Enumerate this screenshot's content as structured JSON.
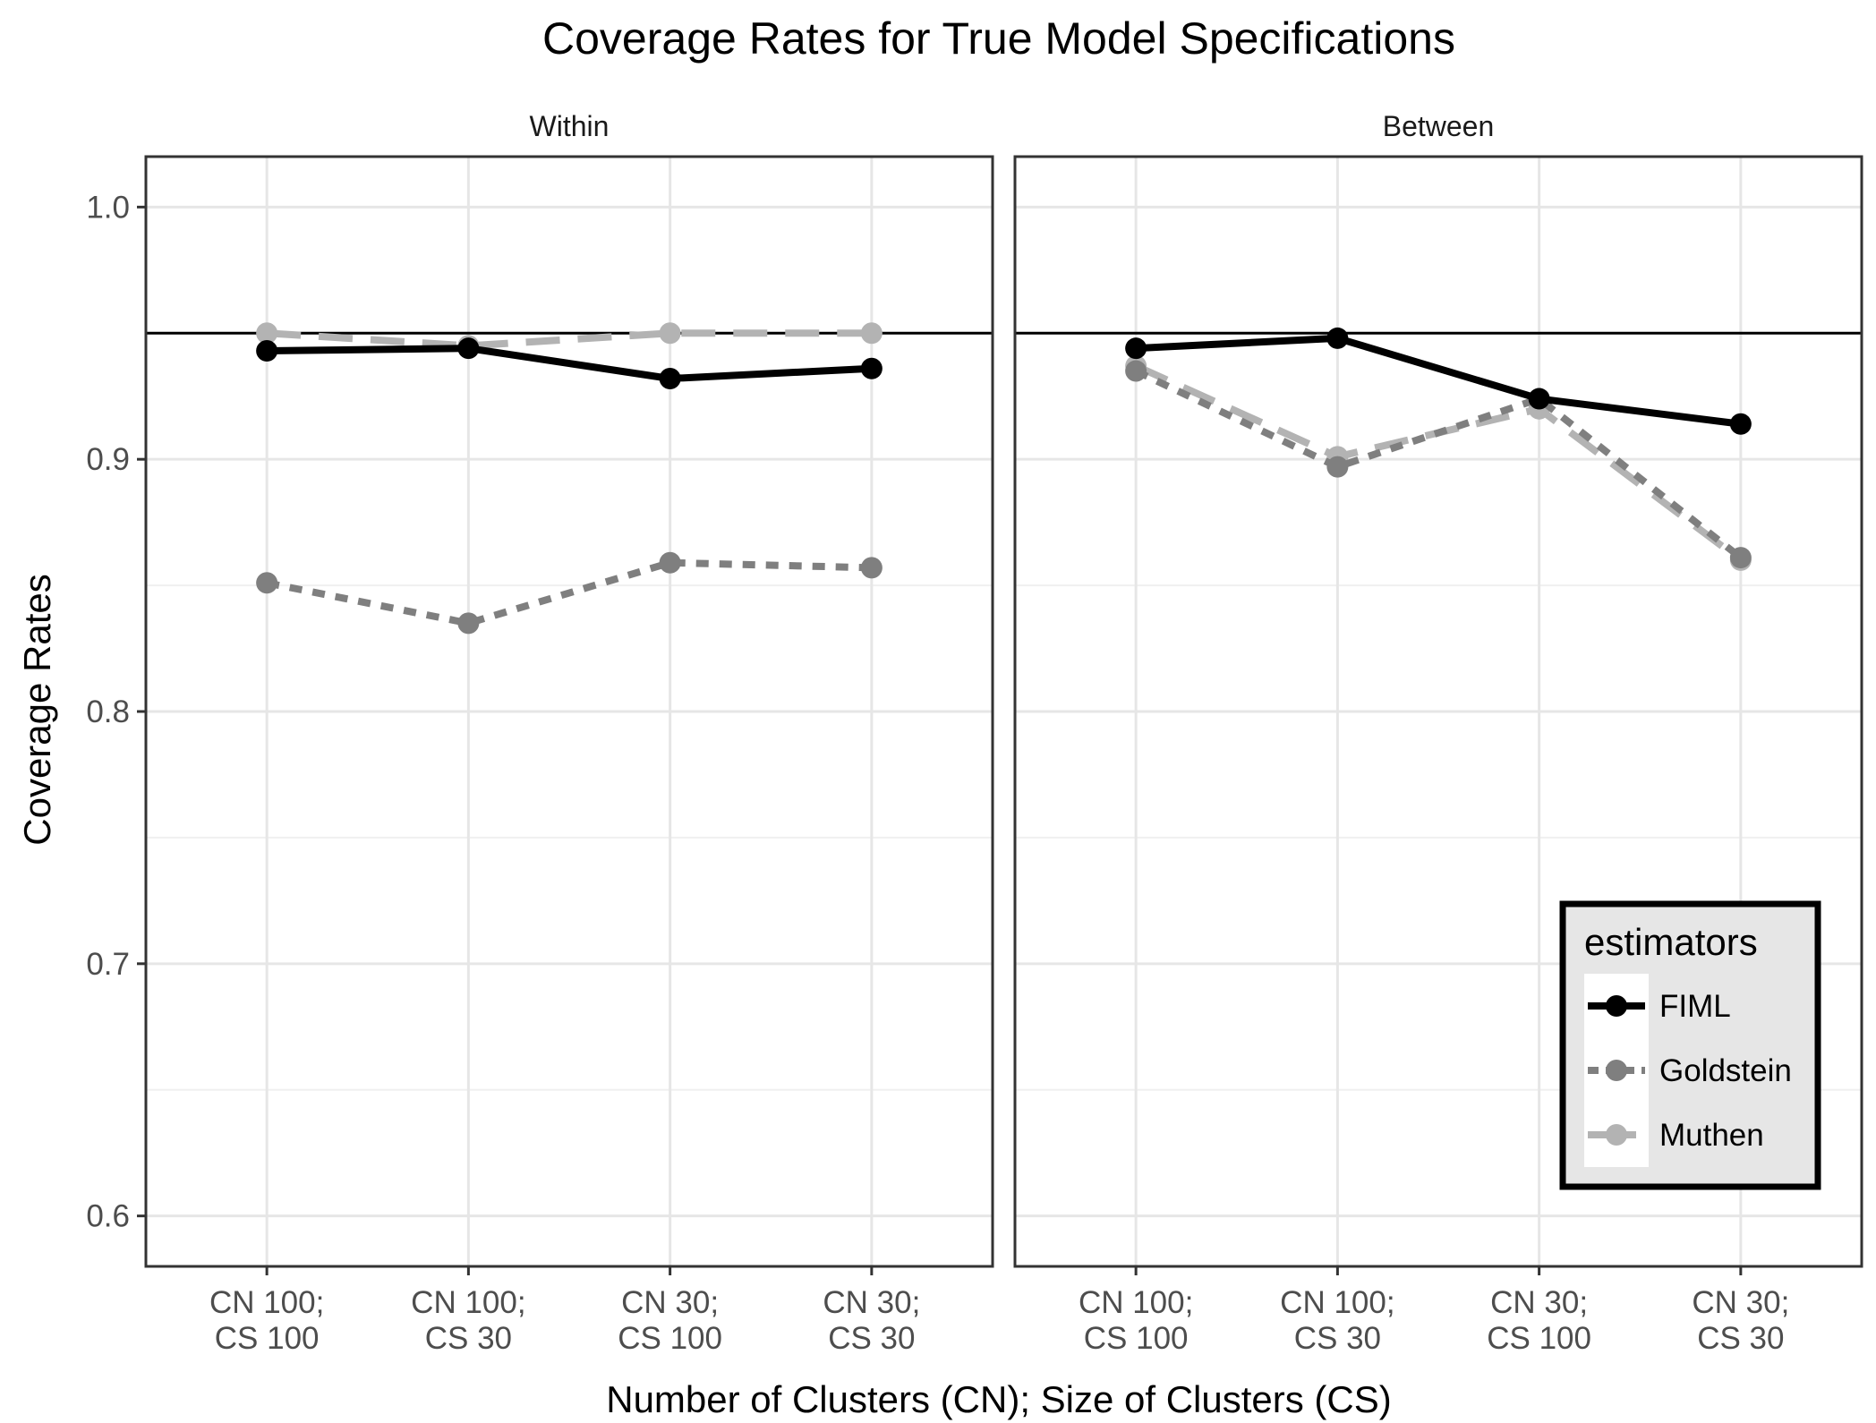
{
  "chart_data": {
    "type": "line",
    "title": "Coverage Rates for True Model Specifications",
    "xlabel": "Number of Clusters (CN); Size of Clusters (CS)",
    "ylabel": "Coverage Rates",
    "ylim": [
      0.58,
      1.02
    ],
    "yticks": [
      "0.6",
      "0.7",
      "0.8",
      "0.9",
      "1.0"
    ],
    "reference_line": 0.95,
    "categories": [
      [
        "CN 100;",
        "CS 100"
      ],
      [
        "CN 100;",
        "CS 30"
      ],
      [
        "CN 30;",
        "CS 100"
      ],
      [
        "CN 30;",
        "CS 30"
      ]
    ],
    "grid": true,
    "panels": [
      {
        "name": "Within",
        "series": [
          {
            "name": "FIML",
            "values": [
              0.943,
              0.944,
              0.932,
              0.936
            ]
          },
          {
            "name": "Goldstein",
            "values": [
              0.851,
              0.835,
              0.859,
              0.857
            ]
          },
          {
            "name": "Muthen",
            "values": [
              0.95,
              0.945,
              0.95,
              0.95
            ]
          }
        ]
      },
      {
        "name": "Between",
        "series": [
          {
            "name": "FIML",
            "values": [
              0.944,
              0.948,
              0.924,
              0.914
            ]
          },
          {
            "name": "Goldstein",
            "values": [
              0.935,
              0.897,
              0.924,
              0.861
            ]
          },
          {
            "name": "Muthen",
            "values": [
              0.937,
              0.901,
              0.92,
              0.86
            ]
          }
        ]
      }
    ],
    "legend": {
      "title": "estimators",
      "position": "bottom-right",
      "items": [
        "FIML",
        "Goldstein",
        "Muthen"
      ]
    },
    "series_styles": {
      "FIML": {
        "color": "#000000",
        "dash": "solid"
      },
      "Goldstein": {
        "color": "#7f7f7f",
        "dash": "dotted"
      },
      "Muthen": {
        "color": "#b3b3b3",
        "dash": "dashed"
      }
    }
  }
}
